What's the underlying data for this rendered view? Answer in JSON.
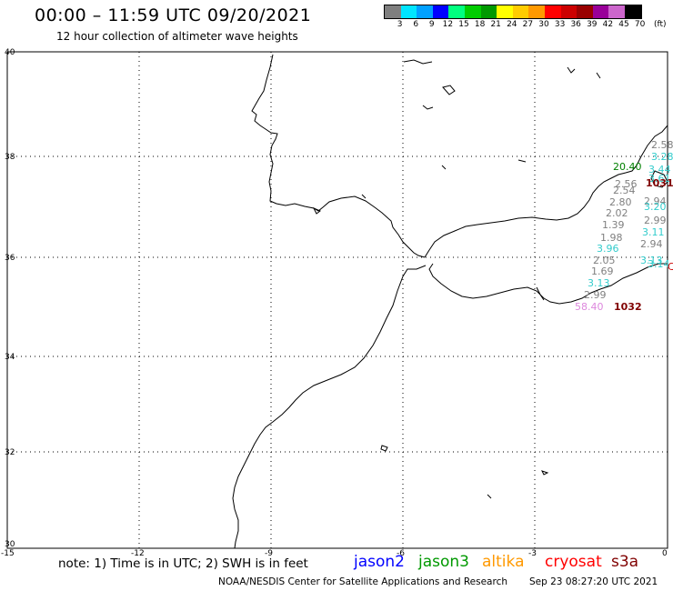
{
  "header": {
    "title": "00:00 – 11:59 UTC 09/20/2021",
    "subtitle": "12 hour collection of altimeter wave heights"
  },
  "legend": {
    "colors": [
      "#7f7f7f",
      "#00e5ff",
      "#00a0ff",
      "#0000ff",
      "#00ff7f",
      "#00cc00",
      "#009900",
      "#ffff00",
      "#ffcc00",
      "#ff9900",
      "#ff0000",
      "#cc0000",
      "#990000",
      "#990099",
      "#cc66cc",
      "#000000"
    ],
    "ticks": [
      "3",
      "6",
      "9",
      "12",
      "15",
      "18",
      "21",
      "24",
      "27",
      "30",
      "33",
      "36",
      "39",
      "42",
      "45",
      "70"
    ],
    "unit": "(ft)"
  },
  "axes": {
    "lat_labels": [
      "40",
      "38",
      "36",
      "34",
      "32",
      "30"
    ],
    "lon_labels": [
      "-15",
      "-12",
      "-9",
      "-6",
      "-3",
      "0"
    ]
  },
  "wave_heights": [
    {
      "text": "2.58",
      "color": "#808080"
    },
    {
      "text": "3.28",
      "color": "#33cccc"
    },
    {
      "text": "20.40",
      "color": "#008000"
    },
    {
      "text": "3.44",
      "color": "#33cccc"
    },
    {
      "text": "3.61",
      "color": "#33cccc"
    },
    {
      "text": "1031",
      "color": "#800000"
    },
    {
      "text": "2.56",
      "color": "#808080"
    },
    {
      "text": "2.54",
      "color": "#808080"
    },
    {
      "text": "2.80",
      "color": "#808080"
    },
    {
      "text": "2.94",
      "color": "#808080"
    },
    {
      "text": "3.20",
      "color": "#33cccc"
    },
    {
      "text": "2.02",
      "color": "#808080"
    },
    {
      "text": "2.99",
      "color": "#808080"
    },
    {
      "text": "1.39",
      "color": "#808080"
    },
    {
      "text": "3.11",
      "color": "#33cccc"
    },
    {
      "text": "1.98",
      "color": "#808080"
    },
    {
      "text": "2.94",
      "color": "#808080"
    },
    {
      "text": "3.96",
      "color": "#33cccc"
    },
    {
      "text": "2.05",
      "color": "#808080"
    },
    {
      "text": "3.13",
      "color": "#33cccc"
    },
    {
      "text": "3.14",
      "color": "#33cccc"
    },
    {
      "text": "C",
      "color": "#cc0000"
    },
    {
      "text": "1.69",
      "color": "#808080"
    },
    {
      "text": "3.13",
      "color": "#33cccc"
    },
    {
      "text": "2.99",
      "color": "#808080"
    },
    {
      "text": "58.40",
      "color": "#dd88dd"
    },
    {
      "text": "1032",
      "color": "#800000"
    }
  ],
  "footer": {
    "note": "note:  1) Time is in UTC;  2) SWH is in feet",
    "satellites": [
      {
        "name": "jason2",
        "color": "#0000ff"
      },
      {
        "name": "jason3",
        "color": "#009900"
      },
      {
        "name": "altika",
        "color": "#ff9900"
      },
      {
        "name": "cryosat",
        "color": "#ff0000"
      },
      {
        "name": "s3a",
        "color": "#800000"
      }
    ],
    "credit": "NOAA/NESDIS Center for Satellite Applications and Research",
    "timestamp": "Sep 23 08:27:20 UTC 2021"
  }
}
